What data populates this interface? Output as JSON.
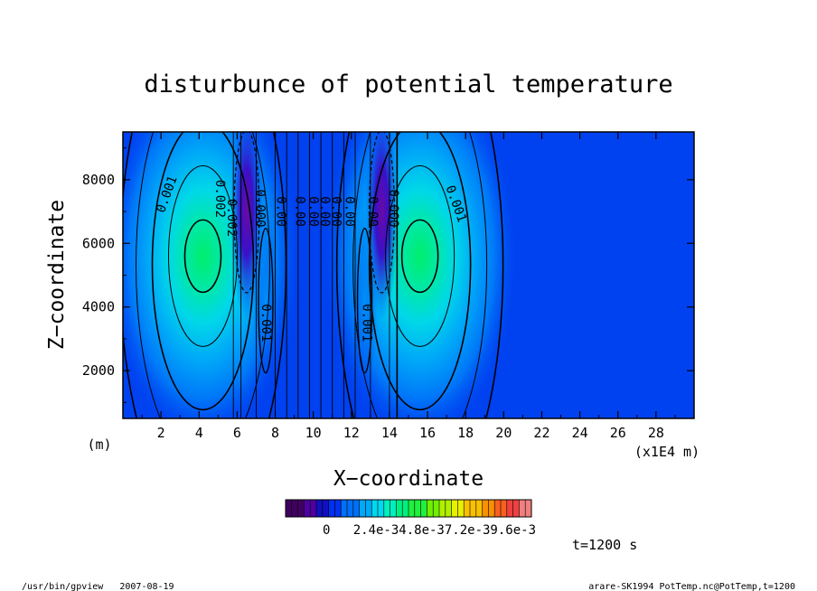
{
  "chart_data": {
    "type": "heatmap",
    "title": "disturbunce of potential temperature",
    "xlabel": "X−coordinate",
    "ylabel": "Z−coordinate",
    "x_unit_left": "(m)",
    "x_unit_right": "(x1E4 m)",
    "xlim": [
      0,
      30
    ],
    "ylim": [
      500,
      9500
    ],
    "x_ticks": [
      "2",
      "4",
      "6",
      "8",
      "10",
      "12",
      "14",
      "16",
      "18",
      "20",
      "22",
      "24",
      "26",
      "28"
    ],
    "x_tick_values": [
      2,
      4,
      6,
      8,
      10,
      12,
      14,
      16,
      18,
      20,
      22,
      24,
      26,
      28
    ],
    "y_ticks": [
      "2000",
      "4000",
      "6000",
      "8000"
    ],
    "y_tick_values": [
      2000,
      4000,
      6000,
      8000
    ],
    "colorbar": {
      "min": 0,
      "max": 0.0096,
      "labels": [
        "0",
        "2.4e-3",
        "4.8e-3",
        "7.2e-3",
        "9.6e-3"
      ],
      "label_text": "0   2.4e-34.8e-37.2e-39.6e-3",
      "colors": [
        "#400060",
        "#5000a0",
        "#1010c0",
        "#0030f0",
        "#0070f8",
        "#00a8f8",
        "#00d8f0",
        "#00f0c0",
        "#00f080",
        "#20f040",
        "#70f000",
        "#b0f000",
        "#e8f000",
        "#f8c000",
        "#f89000",
        "#f86020",
        "#f04040",
        "#f08080"
      ]
    },
    "contour_labels": [
      "0.001",
      "0.002",
      "0.001",
      "0.002",
      "0.001",
      "0.001",
      "0.00",
      "0.00",
      "0.00",
      "0.00",
      "0.00",
      "0.00",
      "0.00",
      "0.000",
      "0.000"
    ],
    "colors": {
      "background_field": "#0041f0",
      "positive_peak": "#00e47a",
      "negative_peak": "#6a0aa4"
    }
  },
  "annotations": {
    "time": "t=1200 s",
    "footer_left": "/usr/bin/gpview   2007-08-19",
    "footer_right": "arare-SK1994_PotTemp.nc@PotTemp,t=1200"
  }
}
